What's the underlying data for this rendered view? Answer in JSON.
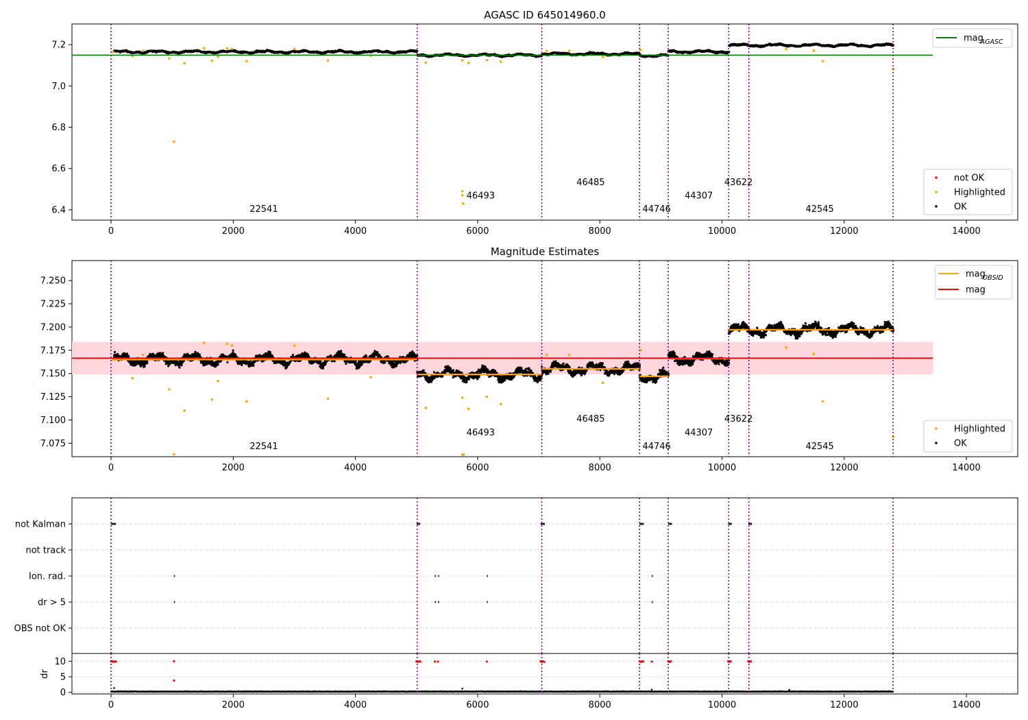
{
  "figure": {
    "title_top": "AGASC ID 645014960.0",
    "title_mid": "Magnitude Estimates"
  },
  "colors": {
    "ok": "#000000",
    "highlighted": "#ffa500",
    "not_ok": "#ff0000",
    "agasc_line": "#008000",
    "mean_line": "#ff0000",
    "band": "#ffd6dc",
    "obsid_line": "#ffa500",
    "boundary": "#800080",
    "grid": "#b0b0b0"
  },
  "chart_data": [
    {
      "type": "scatter",
      "title": "AGASC ID 645014960.0",
      "xlim": [
        -640,
        14840
      ],
      "ylim": [
        6.35,
        7.3
      ],
      "xticks": [
        0,
        2000,
        4000,
        6000,
        8000,
        10000,
        12000,
        14000
      ],
      "yticks": [
        6.4,
        6.6,
        6.8,
        7.0,
        7.2
      ],
      "ytick_labels": [
        "6.4",
        "6.6",
        "6.8",
        "7.0",
        "7.2"
      ],
      "legend_upper": {
        "position": "upper-right",
        "entries": [
          {
            "label": "mag",
            "sub": "AGASC",
            "color": "#008000"
          }
        ]
      },
      "legend_lower": {
        "position": "lower-right",
        "entries": [
          {
            "label": "not OK",
            "color": "#ff0000"
          },
          {
            "label": "Highlighted",
            "color": "#ffa500"
          },
          {
            "label": "OK",
            "color": "#000000"
          }
        ]
      },
      "mag_agasc": {
        "value": 7.149,
        "x_range": [
          -640,
          13450
        ]
      },
      "boundaries": [
        0,
        5010,
        7050,
        8650,
        9120,
        10110,
        10440,
        12800
      ],
      "obsids": [
        {
          "label": "22541",
          "x": 2500,
          "y": 6.39
        },
        {
          "label": "46493",
          "x": 6050,
          "y": 6.455
        },
        {
          "label": "46485",
          "x": 7850,
          "y": 6.52
        },
        {
          "label": "44746",
          "x": 8930,
          "y": 6.39
        },
        {
          "label": "44307",
          "x": 9620,
          "y": 6.455
        },
        {
          "label": "43622",
          "x": 10270,
          "y": 6.52
        },
        {
          "label": "42545",
          "x": 11600,
          "y": 6.39
        }
      ],
      "segments": [
        {
          "x0": 50,
          "x1": 5010,
          "level": 7.165,
          "noise": 0.006
        },
        {
          "x0": 5010,
          "x1": 7050,
          "level": 7.149,
          "noise": 0.006
        },
        {
          "x0": 7050,
          "x1": 8650,
          "level": 7.155,
          "noise": 0.006
        },
        {
          "x0": 8650,
          "x1": 9120,
          "level": 7.147,
          "noise": 0.006
        },
        {
          "x0": 9120,
          "x1": 10110,
          "level": 7.166,
          "noise": 0.006
        },
        {
          "x0": 10110,
          "x1": 12800,
          "level": 7.197,
          "noise": 0.006
        }
      ],
      "highlighted": [
        [
          30,
          7.165
        ],
        [
          350,
          7.145
        ],
        [
          520,
          7.17
        ],
        [
          950,
          7.133
        ],
        [
          1030,
          6.73
        ],
        [
          1200,
          7.11
        ],
        [
          1520,
          7.183
        ],
        [
          1650,
          7.122
        ],
        [
          1750,
          7.142
        ],
        [
          1900,
          7.182
        ],
        [
          1980,
          7.18
        ],
        [
          2220,
          7.12
        ],
        [
          3000,
          7.18
        ],
        [
          3550,
          7.123
        ],
        [
          4250,
          7.146
        ],
        [
          5150,
          7.113
        ],
        [
          5750,
          6.49
        ],
        [
          5750,
          6.47
        ],
        [
          5760,
          6.43
        ],
        [
          5750,
          7.124
        ],
        [
          5850,
          7.112
        ],
        [
          6150,
          7.125
        ],
        [
          6380,
          7.117
        ],
        [
          7130,
          7.17
        ],
        [
          7500,
          7.17
        ],
        [
          8050,
          7.14
        ],
        [
          8670,
          7.175
        ],
        [
          11050,
          7.178
        ],
        [
          11500,
          7.171
        ],
        [
          11650,
          7.12
        ],
        [
          12800,
          7.082
        ]
      ]
    },
    {
      "type": "scatter",
      "title": "Magnitude Estimates",
      "xlim": [
        -640,
        14840
      ],
      "ylim": [
        7.0605,
        7.2715
      ],
      "xticks": [
        0,
        2000,
        4000,
        6000,
        8000,
        10000,
        12000,
        14000
      ],
      "yticks": [
        7.075,
        7.1,
        7.125,
        7.15,
        7.175,
        7.2,
        7.225,
        7.25
      ],
      "ytick_labels": [
        "7.075",
        "7.100",
        "7.125",
        "7.150",
        "7.175",
        "7.200",
        "7.225",
        "7.250"
      ],
      "legend_upper": {
        "position": "upper-right",
        "entries": [
          {
            "label": "mag",
            "sub": "OBSID",
            "color": "#ffa500"
          },
          {
            "label": "mag",
            "sub": "",
            "color": "#ff0000"
          }
        ]
      },
      "legend_lower": {
        "position": "lower-right",
        "entries": [
          {
            "label": "Highlighted",
            "color": "#ffa500"
          },
          {
            "label": "OK",
            "color": "#000000"
          }
        ]
      },
      "mag_mean": {
        "value": 7.1665,
        "x_range": [
          -640,
          13450
        ]
      },
      "band": {
        "y0": 7.149,
        "y1": 7.184,
        "x_range": [
          -640,
          13450
        ]
      },
      "boundaries": [
        0,
        5010,
        7050,
        8650,
        9120,
        10110,
        10440,
        12800
      ],
      "obsids": [
        {
          "label": "22541",
          "x": 2500,
          "y": 7.0685
        },
        {
          "label": "46493",
          "x": 6050,
          "y": 7.0835
        },
        {
          "label": "46485",
          "x": 7850,
          "y": 7.098
        },
        {
          "label": "44746",
          "x": 8930,
          "y": 7.0685
        },
        {
          "label": "44307",
          "x": 9620,
          "y": 7.0835
        },
        {
          "label": "43622",
          "x": 10270,
          "y": 7.098
        },
        {
          "label": "42545",
          "x": 11600,
          "y": 7.0685
        }
      ],
      "segments": [
        {
          "x0": 50,
          "x1": 5010,
          "level": 7.165,
          "noise": 0.006
        },
        {
          "x0": 5010,
          "x1": 7050,
          "level": 7.149,
          "noise": 0.006
        },
        {
          "x0": 7050,
          "x1": 8650,
          "level": 7.155,
          "noise": 0.006
        },
        {
          "x0": 8650,
          "x1": 9120,
          "level": 7.147,
          "noise": 0.006
        },
        {
          "x0": 9120,
          "x1": 10110,
          "level": 7.166,
          "noise": 0.006
        },
        {
          "x0": 10110,
          "x1": 12800,
          "level": 7.197,
          "noise": 0.006
        }
      ],
      "highlighted": [
        [
          30,
          7.165
        ],
        [
          350,
          7.145
        ],
        [
          520,
          7.17
        ],
        [
          950,
          7.133
        ],
        [
          1030,
          7.063
        ],
        [
          1200,
          7.11
        ],
        [
          1520,
          7.183
        ],
        [
          1650,
          7.122
        ],
        [
          1750,
          7.142
        ],
        [
          1900,
          7.182
        ],
        [
          1980,
          7.18
        ],
        [
          2220,
          7.12
        ],
        [
          3000,
          7.18
        ],
        [
          3550,
          7.123
        ],
        [
          4250,
          7.146
        ],
        [
          5150,
          7.113
        ],
        [
          5750,
          7.0625
        ],
        [
          5770,
          7.063
        ],
        [
          5750,
          7.124
        ],
        [
          5850,
          7.112
        ],
        [
          6150,
          7.125
        ],
        [
          6380,
          7.117
        ],
        [
          7130,
          7.17
        ],
        [
          7500,
          7.17
        ],
        [
          8050,
          7.14
        ],
        [
          8670,
          7.175
        ],
        [
          11050,
          7.178
        ],
        [
          11500,
          7.171
        ],
        [
          11650,
          7.12
        ],
        [
          12800,
          7.082
        ]
      ]
    },
    {
      "type": "scatter",
      "title": "",
      "xlim": [
        -640,
        14840
      ],
      "categories": [
        "not Kalman",
        "not track",
        "Ion. rad.",
        "dr > 5",
        "OBS not OK"
      ],
      "boundaries": [
        0,
        5010,
        7050,
        8650,
        9120,
        10110,
        10440,
        12800
      ],
      "flags": {
        "not Kalman": [
          [
            0,
            80
          ],
          [
            5000,
            5060
          ],
          [
            7030,
            7100
          ],
          [
            8650,
            8720
          ],
          [
            9120,
            9180
          ],
          [
            10100,
            10160
          ],
          [
            10430,
            10490
          ]
        ],
        "not track": [],
        "Ion. rad.": [
          [
            1030,
            1032
          ],
          [
            5300,
            5302
          ],
          [
            5350,
            5352
          ],
          [
            6150,
            6152
          ],
          [
            8850,
            8852
          ]
        ],
        "dr > 5": [
          [
            1030,
            1032
          ],
          [
            5300,
            5302
          ],
          [
            5350,
            5352
          ],
          [
            6150,
            6152
          ],
          [
            8850,
            8852
          ]
        ],
        "OBS not OK": []
      }
    },
    {
      "type": "scatter",
      "title": "",
      "ylabel": "dr",
      "xlim": [
        -640,
        14840
      ],
      "ylim": [
        -0.5,
        12.5
      ],
      "xticks": [
        0,
        2000,
        4000,
        6000,
        8000,
        10000,
        12000,
        14000
      ],
      "yticks": [
        0,
        5,
        10
      ],
      "ytick_labels": [
        "0",
        "5",
        "10"
      ],
      "boundaries": [
        0,
        5010,
        7050,
        8650,
        9120,
        10110,
        10440,
        12800
      ],
      "baseline": {
        "x0": 0,
        "x1": 12800,
        "level": 0.2,
        "noise": 0.15
      },
      "red_markers": [
        [
          0,
          10
        ],
        [
          20,
          10
        ],
        [
          40,
          9.8
        ],
        [
          60,
          10
        ],
        [
          80,
          9.9
        ],
        [
          1030,
          10
        ],
        [
          1030,
          3.8
        ],
        [
          5000,
          10
        ],
        [
          5020,
          9.8
        ],
        [
          5040,
          10
        ],
        [
          5060,
          9.9
        ],
        [
          5300,
          9.9
        ],
        [
          5350,
          9.9
        ],
        [
          6150,
          9.9
        ],
        [
          7030,
          10
        ],
        [
          7050,
          9.8
        ],
        [
          7070,
          10
        ],
        [
          7090,
          9.8
        ],
        [
          8650,
          10
        ],
        [
          8670,
          9.8
        ],
        [
          8690,
          10
        ],
        [
          8710,
          9.9
        ],
        [
          8850,
          9.9
        ],
        [
          9120,
          10
        ],
        [
          9140,
          9.8
        ],
        [
          9160,
          10
        ],
        [
          10100,
          10
        ],
        [
          10120,
          9.8
        ],
        [
          10140,
          10
        ],
        [
          10430,
          10
        ],
        [
          10450,
          9.8
        ],
        [
          10470,
          10
        ]
      ],
      "black_spikes": [
        [
          50,
          1.4
        ],
        [
          5750,
          1.2
        ],
        [
          8850,
          0.9
        ],
        [
          11100,
          0.8
        ]
      ]
    }
  ]
}
